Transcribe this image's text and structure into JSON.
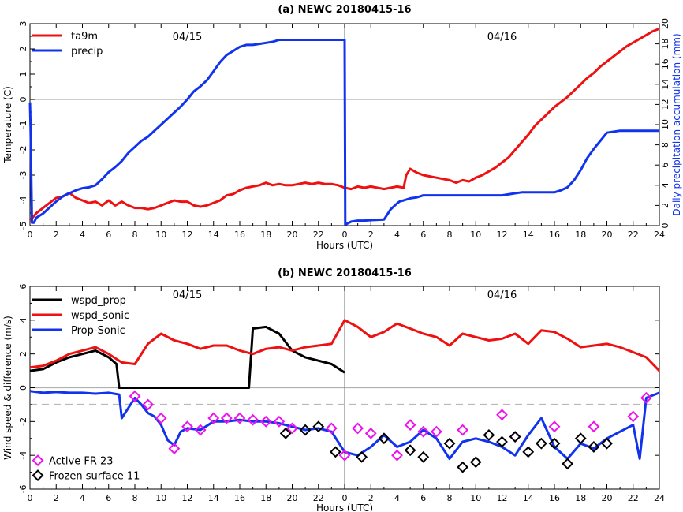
{
  "chart_data": [
    {
      "type": "line",
      "title": "(a) NEWC 20180415-16",
      "xlabel": "Hours (UTC)",
      "ylabel": "Temperature (C)",
      "y2label": "Daily precipitation accumulation (mm)",
      "day_labels": [
        "04/15",
        "04/16"
      ],
      "xticks": [
        "0",
        "2",
        "4",
        "6",
        "8",
        "10",
        "12",
        "14",
        "16",
        "18",
        "20",
        "22",
        "0",
        "2",
        "4",
        "6",
        "8",
        "10",
        "12",
        "14",
        "16",
        "18",
        "20",
        "22",
        "24"
      ],
      "xlim": [
        0,
        48
      ],
      "ylim": [
        -5,
        3
      ],
      "y2lim": [
        0,
        20
      ],
      "yticks": [
        "-5",
        "-4",
        "-3",
        "-2",
        "-1",
        "0",
        "1",
        "2",
        "3"
      ],
      "y2ticks": [
        "0",
        "2",
        "4",
        "6",
        "8",
        "10",
        "12",
        "14",
        "16",
        "18",
        "20"
      ],
      "grid": false,
      "legend_position": "top-left",
      "colors": {
        "ta9m": "#ee1111",
        "precip": "#1133ee"
      },
      "series": [
        {
          "name": "ta9m",
          "axis": "left",
          "x": [
            0,
            0.5,
            1,
            1.5,
            2,
            2.5,
            3,
            3.5,
            4,
            4.5,
            5,
            5.5,
            6,
            6.5,
            7,
            7.5,
            8,
            8.5,
            9,
            9.5,
            10,
            10.5,
            11,
            11.5,
            12,
            12.5,
            13,
            13.5,
            14,
            14.5,
            15,
            15.5,
            16,
            16.5,
            17,
            17.5,
            18,
            18.5,
            19,
            19.5,
            20,
            20.5,
            21,
            21.5,
            22,
            22.5,
            23,
            23.5,
            24,
            24.5,
            25,
            25.5,
            26,
            26.5,
            27,
            27.5,
            28,
            28.5,
            28.7,
            29,
            29.5,
            30,
            30.5,
            31,
            31.5,
            32,
            32.5,
            33,
            33.5,
            34,
            34.5,
            35,
            35.5,
            36,
            36.5,
            37,
            37.5,
            38,
            38.5,
            39,
            39.5,
            40,
            40.5,
            41,
            41.5,
            42,
            42.5,
            43,
            43.5,
            44,
            44.5,
            45,
            45.5,
            46,
            46.5,
            47,
            47.5,
            48
          ],
          "values": [
            -4.8,
            -4.5,
            -4.3,
            -4.1,
            -3.9,
            -3.85,
            -3.7,
            -3.9,
            -4.0,
            -4.1,
            -4.05,
            -4.2,
            -4.0,
            -4.2,
            -4.05,
            -4.2,
            -4.3,
            -4.3,
            -4.35,
            -4.3,
            -4.2,
            -4.1,
            -4.0,
            -4.05,
            -4.05,
            -4.2,
            -4.25,
            -4.2,
            -4.1,
            -4.0,
            -3.8,
            -3.75,
            -3.6,
            -3.5,
            -3.45,
            -3.4,
            -3.3,
            -3.4,
            -3.35,
            -3.4,
            -3.4,
            -3.35,
            -3.3,
            -3.35,
            -3.3,
            -3.35,
            -3.35,
            -3.4,
            -3.5,
            -3.55,
            -3.45,
            -3.5,
            -3.45,
            -3.5,
            -3.55,
            -3.5,
            -3.45,
            -3.5,
            -3.0,
            -2.75,
            -2.9,
            -3.0,
            -3.05,
            -3.1,
            -3.15,
            -3.2,
            -3.3,
            -3.2,
            -3.25,
            -3.1,
            -3.0,
            -2.85,
            -2.7,
            -2.5,
            -2.3,
            -2.0,
            -1.7,
            -1.4,
            -1.05,
            -0.8,
            -0.55,
            -0.3,
            -0.1,
            0.1,
            0.35,
            0.6,
            0.85,
            1.05,
            1.3,
            1.5,
            1.7,
            1.9,
            2.1,
            2.25,
            2.4,
            2.55,
            2.7,
            2.8
          ]
        },
        {
          "name": "precip",
          "axis": "right",
          "x": [
            0,
            0.05,
            0.15,
            0.3,
            0.5,
            1,
            1.5,
            2,
            2.5,
            3,
            3.5,
            4,
            4.5,
            5,
            5.5,
            6,
            6.5,
            7,
            7.5,
            8,
            8.5,
            9,
            9.5,
            10,
            10.5,
            11,
            11.5,
            12,
            12.5,
            13,
            13.5,
            14,
            14.5,
            15,
            15.5,
            16,
            16.5,
            17,
            17.5,
            18,
            18.5,
            19,
            20,
            21,
            22,
            23,
            24,
            24.05,
            24.5,
            25,
            25.5,
            26,
            27,
            27.5,
            28,
            28.2,
            28.5,
            29,
            29.5,
            30,
            31,
            32,
            33,
            34,
            35,
            36,
            37,
            37.5,
            38,
            39,
            40,
            40.5,
            41,
            41.5,
            42,
            42.5,
            43,
            43.5,
            44,
            45,
            46,
            47,
            48
          ],
          "values": [
            12.2,
            9.5,
            0.3,
            0.3,
            0.8,
            1.2,
            1.8,
            2.4,
            2.9,
            3.2,
            3.5,
            3.7,
            3.8,
            4.0,
            4.6,
            5.3,
            5.8,
            6.4,
            7.2,
            7.8,
            8.4,
            8.8,
            9.4,
            10.0,
            10.6,
            11.2,
            11.8,
            12.5,
            13.3,
            13.8,
            14.4,
            15.3,
            16.2,
            16.9,
            17.3,
            17.7,
            17.9,
            17.9,
            18.0,
            18.1,
            18.2,
            18.4,
            18.4,
            18.4,
            18.4,
            18.4,
            18.4,
            0.1,
            0.4,
            0.5,
            0.5,
            0.55,
            0.6,
            1.6,
            2.2,
            2.4,
            2.5,
            2.7,
            2.8,
            3.0,
            3.0,
            3.0,
            3.0,
            3.0,
            3.0,
            3.0,
            3.2,
            3.3,
            3.3,
            3.3,
            3.3,
            3.5,
            3.8,
            4.5,
            5.5,
            6.7,
            7.6,
            8.4,
            9.2,
            9.4,
            9.4,
            9.4,
            9.4
          ]
        }
      ]
    },
    {
      "type": "line",
      "title": "(b) NEWC 20180415-16",
      "xlabel": "Hours (UTC)",
      "ylabel": "Wind speed & difference (m/s)",
      "day_labels": [
        "04/15",
        "04/16"
      ],
      "xticks": [
        "0",
        "2",
        "4",
        "6",
        "8",
        "10",
        "12",
        "14",
        "16",
        "18",
        "20",
        "22",
        "0",
        "2",
        "4",
        "6",
        "8",
        "10",
        "12",
        "14",
        "16",
        "18",
        "20",
        "22",
        "24"
      ],
      "xlim": [
        0,
        48
      ],
      "ylim": [
        -6,
        6
      ],
      "yticks": [
        "-6",
        "-4",
        "-2",
        "0",
        "2",
        "4",
        "6"
      ],
      "reference_line": -1,
      "grid": false,
      "legend_position": "top-left",
      "colors": {
        "wspd_prop": "#000000",
        "wspd_sonic": "#ee1111",
        "Prop-Sonic": "#1133ee",
        "active": "#ee11ee",
        "frozen": "#000000"
      },
      "series": [
        {
          "name": "wspd_prop",
          "x": [
            0,
            1,
            2,
            3,
            4,
            5,
            6,
            6.6,
            6.8,
            7,
            16.5,
            16.7,
            17,
            18,
            19,
            20,
            21,
            22,
            23,
            24
          ],
          "values": [
            1.0,
            1.1,
            1.5,
            1.8,
            2.0,
            2.2,
            1.8,
            1.4,
            0,
            0,
            0,
            0,
            3.5,
            3.6,
            3.2,
            2.2,
            1.8,
            1.6,
            1.4,
            0.9
          ]
        },
        {
          "name": "wspd_sonic",
          "x": [
            0,
            1,
            2,
            3,
            4,
            5,
            6,
            7,
            8,
            9,
            10,
            11,
            12,
            13,
            14,
            15,
            16,
            17,
            18,
            19,
            20,
            21,
            22,
            23,
            24,
            25,
            26,
            27,
            28,
            29,
            30,
            31,
            32,
            33,
            34,
            35,
            36,
            37,
            38,
            39,
            40,
            41,
            42,
            43,
            44,
            45,
            46,
            47,
            48
          ],
          "values": [
            1.2,
            1.3,
            1.6,
            2.0,
            2.2,
            2.4,
            2.0,
            1.5,
            1.4,
            2.6,
            3.2,
            2.8,
            2.6,
            2.3,
            2.5,
            2.5,
            2.2,
            2.0,
            2.3,
            2.4,
            2.2,
            2.4,
            2.5,
            2.6,
            4.0,
            3.6,
            3.0,
            3.3,
            3.8,
            3.5,
            3.2,
            3.0,
            2.5,
            3.2,
            3.0,
            2.8,
            2.9,
            3.2,
            2.6,
            3.4,
            3.3,
            2.9,
            2.4,
            2.5,
            2.6,
            2.4,
            2.1,
            1.8,
            1.0
          ]
        },
        {
          "name": "Prop-Sonic",
          "x": [
            0,
            1,
            2,
            3,
            4,
            5,
            6,
            6.8,
            7,
            7.5,
            8,
            8.5,
            9,
            9.5,
            10,
            10.5,
            11,
            11.5,
            12,
            13,
            14,
            15,
            16,
            17,
            18,
            19,
            20,
            21,
            22,
            23,
            24,
            25,
            26,
            27,
            28,
            29,
            30,
            31,
            32,
            33,
            34,
            35,
            36,
            37,
            38,
            39,
            40,
            41,
            42,
            43,
            44,
            45,
            46,
            46.5,
            47,
            48
          ],
          "values": [
            -0.2,
            -0.3,
            -0.25,
            -0.3,
            -0.3,
            -0.35,
            -0.3,
            -0.4,
            -1.8,
            -1.2,
            -0.6,
            -1.0,
            -1.5,
            -1.7,
            -2.2,
            -3.1,
            -3.4,
            -2.6,
            -2.4,
            -2.5,
            -2.0,
            -2.0,
            -1.9,
            -2.0,
            -2.0,
            -2.1,
            -2.3,
            -2.5,
            -2.4,
            -2.6,
            -3.8,
            -4.0,
            -3.5,
            -2.8,
            -3.5,
            -3.2,
            -2.5,
            -3.0,
            -4.2,
            -3.2,
            -3.0,
            -3.2,
            -3.5,
            -4.0,
            -2.8,
            -1.8,
            -3.5,
            -4.2,
            -3.3,
            -3.6,
            -3.0,
            -2.6,
            -2.2,
            -4.2,
            -0.6,
            -0.3
          ]
        },
        {
          "name": "Active FR 23",
          "marker": "diamond",
          "x": [
            8,
            9,
            10,
            11,
            12,
            13,
            14,
            15,
            16,
            17,
            18,
            19,
            20,
            23,
            24,
            25,
            26,
            28,
            29,
            30,
            31,
            33,
            36,
            37,
            40,
            43,
            46,
            47
          ],
          "values": [
            -0.5,
            -1.0,
            -1.8,
            -3.6,
            -2.3,
            -2.5,
            -1.8,
            -1.8,
            -1.8,
            -1.9,
            -2.0,
            -2.0,
            -2.4,
            -2.4,
            -4.0,
            -2.4,
            -2.7,
            -4.0,
            -2.2,
            -2.6,
            -2.6,
            -2.5,
            -1.6,
            -2.9,
            -2.3,
            -2.3,
            -1.7,
            -0.6
          ]
        },
        {
          "name": "Frozen surface 11",
          "marker": "diamond",
          "x": [
            19.5,
            21,
            22,
            23.3,
            25.3,
            27,
            29,
            30,
            32,
            33,
            34,
            35,
            36,
            37,
            38,
            39,
            40,
            41,
            42,
            43,
            44
          ],
          "values": [
            -2.7,
            -2.5,
            -2.3,
            -3.8,
            -4.1,
            -3.0,
            -3.7,
            -4.1,
            -3.3,
            -4.7,
            -4.4,
            -2.8,
            -3.2,
            -2.9,
            -3.8,
            -3.3,
            -3.3,
            -4.5,
            -3.0,
            -3.5,
            -3.3
          ]
        }
      ]
    }
  ]
}
